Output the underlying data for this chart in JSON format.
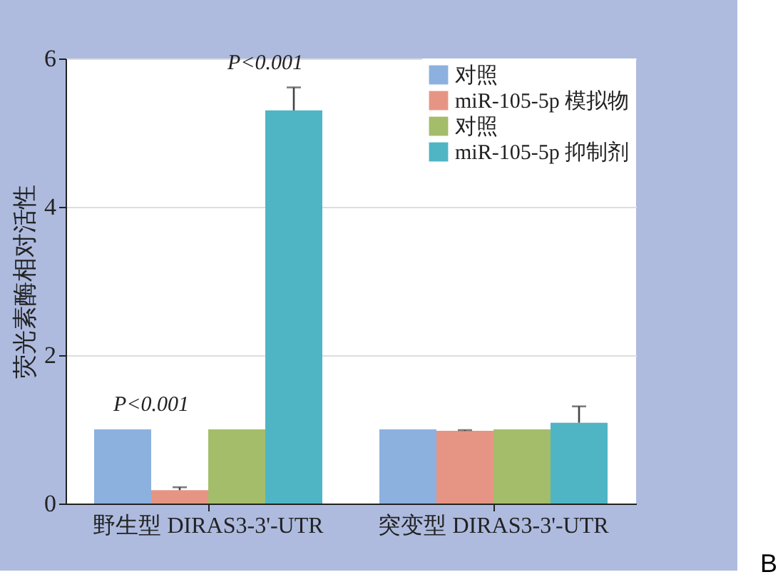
{
  "chart_data": {
    "type": "bar",
    "ylabel": "荧光素酶相对活性",
    "categories": [
      "野生型 DIRAS3-3'-UTR",
      "突变型 DIRAS3-3'-UTR"
    ],
    "series": [
      {
        "name": "对照",
        "color": "#8cb1df",
        "values": [
          1.0,
          1.0
        ]
      },
      {
        "name": "miR-105-5p 模拟物",
        "color": "#e69585",
        "values": [
          0.18,
          0.98
        ],
        "errors": [
          [
            0.18,
            0.22
          ],
          [
            0.98,
            0.99
          ]
        ]
      },
      {
        "name": "对照",
        "color": "#a3bd6a",
        "values": [
          1.0,
          1.0
        ]
      },
      {
        "name": "miR-105-5p 抑制剂",
        "color": "#4fb5c5",
        "values": [
          5.3,
          1.09
        ],
        "errors": [
          [
            5.3,
            5.61
          ],
          [
            1.09,
            1.31
          ]
        ]
      }
    ],
    "ylim": [
      0,
      6
    ],
    "yticks": [
      0,
      2,
      4,
      6
    ],
    "grid": "y",
    "legend": "top right",
    "annotations": [
      "P<0.001",
      "P<0.001",
      "B"
    ]
  }
}
